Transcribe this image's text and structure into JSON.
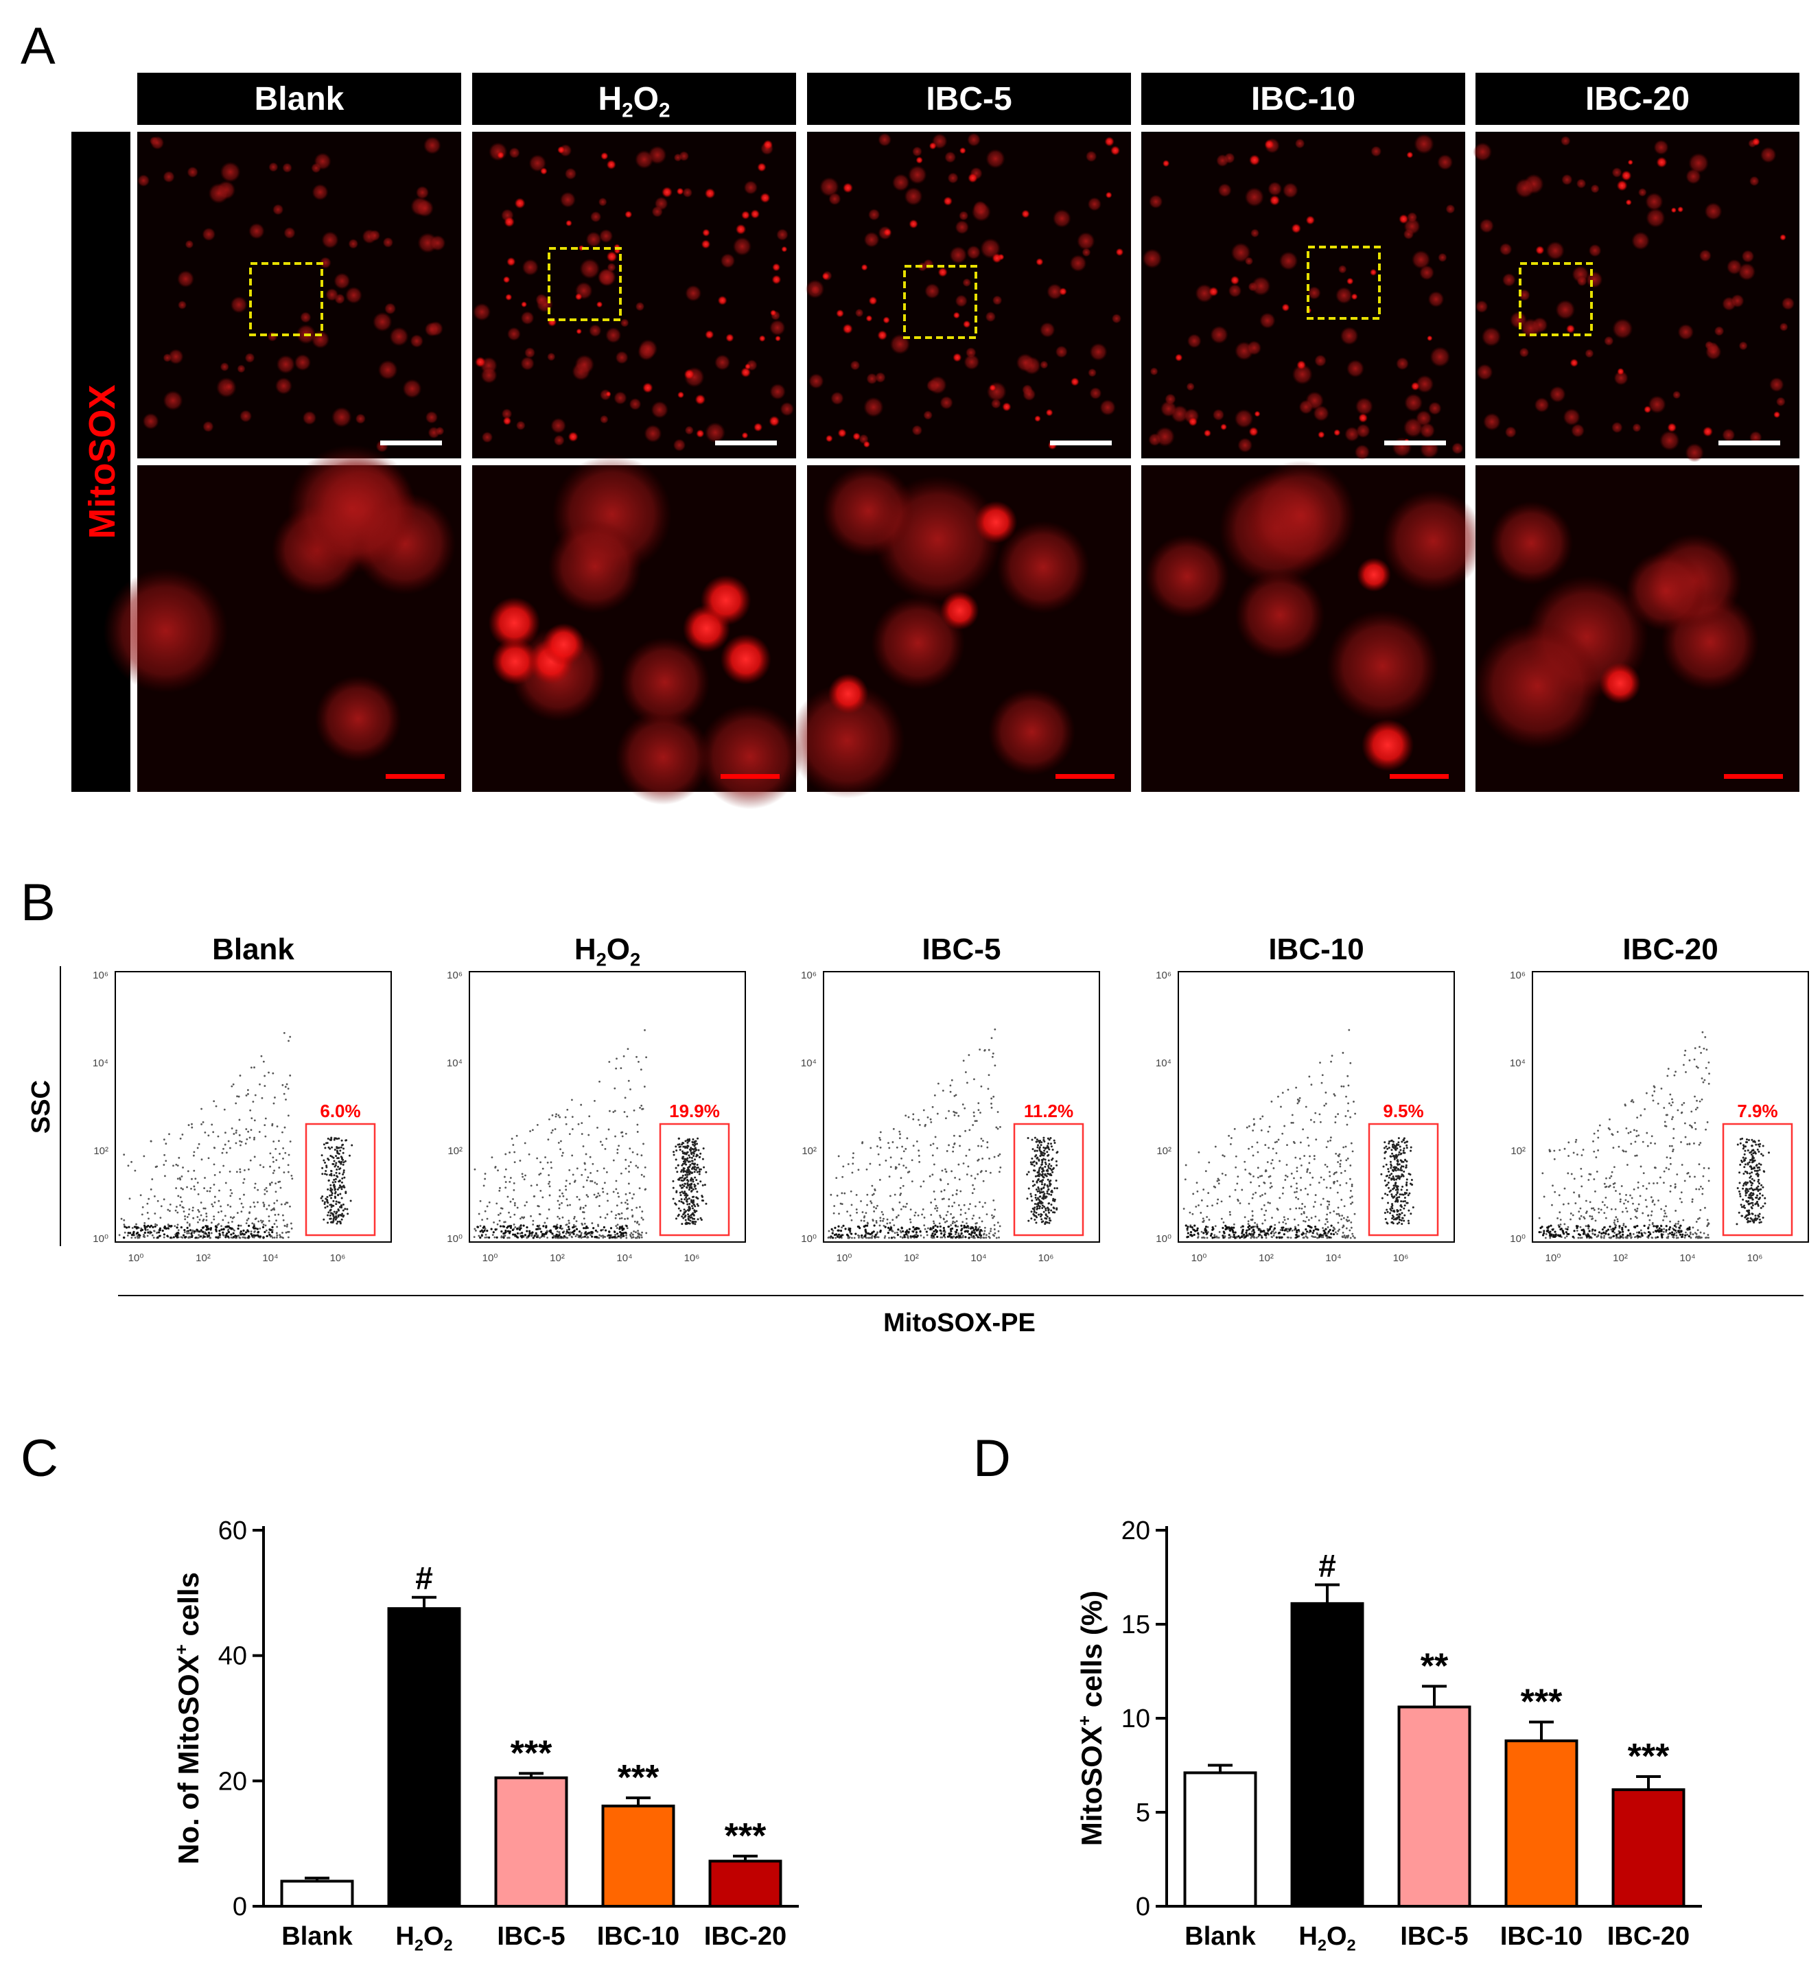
{
  "panels": {
    "a": {
      "letter": "A",
      "row_label": "MitoSOX",
      "columns": [
        "Blank",
        "H2O2",
        "IBC-5",
        "IBC-10",
        "IBC-20"
      ]
    },
    "b": {
      "letter": "B",
      "ylabel": "SSC",
      "xlabel": "MitoSOX-PE",
      "plots": [
        {
          "title": "Blank",
          "gate_pct": "6.0%",
          "density": 0.55
        },
        {
          "title": "H2O2",
          "gate_pct": "19.9%",
          "density": 1.0
        },
        {
          "title": "IBC-5",
          "gate_pct": "11.2%",
          "density": 0.8
        },
        {
          "title": "IBC-10",
          "gate_pct": "9.5%",
          "density": 0.7
        },
        {
          "title": "IBC-20",
          "gate_pct": "7.9%",
          "density": 0.62
        }
      ]
    },
    "c": {
      "letter": "C"
    },
    "d": {
      "letter": "D"
    }
  },
  "chart_data": [
    {
      "type": "bar",
      "ylabel": "No. of MitoSOX+ cells",
      "categories": [
        "Blank",
        "H2O2",
        "IBC-5",
        "IBC-10",
        "IBC-20"
      ],
      "values": [
        4,
        47.5,
        20.5,
        16,
        7.2
      ],
      "errors": [
        0.5,
        1.8,
        0.7,
        1.3,
        0.8
      ],
      "annotations": [
        "",
        "#",
        "***",
        "***",
        "***"
      ],
      "colors": [
        "#ffffff",
        "#000000",
        "#ff9999",
        "#ff6600",
        "#c00000"
      ],
      "ylim": [
        0,
        60
      ],
      "yticks": [
        0,
        20,
        40,
        60
      ]
    },
    {
      "type": "bar",
      "ylabel": "MitoSOX+ cells (%)",
      "categories": [
        "Blank",
        "H2O2",
        "IBC-5",
        "IBC-10",
        "IBC-20"
      ],
      "values": [
        7.1,
        16.1,
        10.6,
        8.8,
        6.2
      ],
      "errors": [
        0.4,
        1.0,
        1.1,
        1.0,
        0.7
      ],
      "annotations": [
        "",
        "#",
        "**",
        "***",
        "***"
      ],
      "colors": [
        "#ffffff",
        "#000000",
        "#ff9999",
        "#ff6600",
        "#c00000"
      ],
      "ylim": [
        0,
        20
      ],
      "yticks": [
        0,
        5,
        10,
        15,
        20
      ]
    }
  ]
}
